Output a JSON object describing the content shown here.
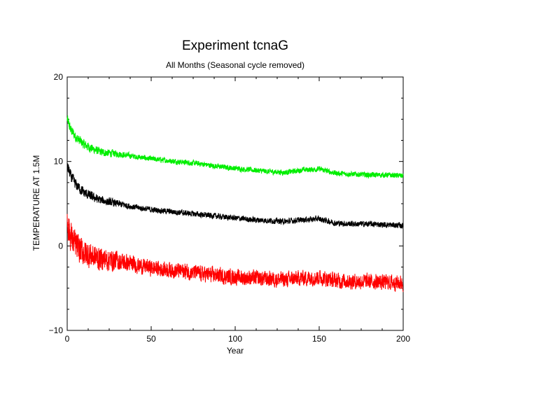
{
  "chart_data": {
    "type": "line",
    "title": "Experiment tcnaG",
    "subtitle": "All Months (Seasonal cycle removed)",
    "xlabel": "Year",
    "ylabel": "TEMPERATURE AT 1.5M",
    "xlim": [
      0,
      200
    ],
    "ylim": [
      -10,
      20
    ],
    "xticks": [
      0,
      50,
      100,
      150,
      200
    ],
    "yticks": [
      -10,
      0,
      10,
      20
    ],
    "grid": false,
    "legend": "none",
    "series": [
      {
        "color": "#00ee00",
        "x": [
          0,
          2,
          5,
          10,
          15,
          20,
          30,
          40,
          50,
          60,
          70,
          80,
          90,
          100,
          110,
          120,
          130,
          140,
          150,
          160,
          170,
          180,
          190,
          200
        ],
        "y": [
          15.0,
          13.8,
          12.9,
          12.0,
          11.5,
          11.1,
          10.9,
          10.6,
          10.3,
          10.1,
          9.9,
          9.7,
          9.4,
          9.2,
          9.0,
          8.8,
          8.7,
          9.0,
          9.1,
          8.6,
          8.5,
          8.4,
          8.4,
          8.3
        ],
        "noise": 0.28
      },
      {
        "color": "#000000",
        "x": [
          0,
          2,
          5,
          10,
          15,
          20,
          30,
          40,
          50,
          60,
          70,
          80,
          90,
          100,
          110,
          120,
          130,
          140,
          150,
          160,
          170,
          180,
          190,
          200
        ],
        "y": [
          9.5,
          8.3,
          7.3,
          6.3,
          5.8,
          5.4,
          5.0,
          4.6,
          4.3,
          4.1,
          3.9,
          3.7,
          3.5,
          3.3,
          3.1,
          3.0,
          2.9,
          3.1,
          3.2,
          2.7,
          2.6,
          2.6,
          2.5,
          2.4
        ],
        "noise": 0.3
      },
      {
        "color": "#ff0000",
        "x": [
          0,
          2,
          5,
          10,
          15,
          20,
          30,
          40,
          50,
          60,
          70,
          80,
          90,
          100,
          110,
          120,
          130,
          140,
          150,
          160,
          170,
          180,
          190,
          200
        ],
        "y": [
          3.0,
          1.2,
          0.0,
          -0.8,
          -1.2,
          -1.5,
          -1.8,
          -2.2,
          -2.6,
          -2.8,
          -3.0,
          -3.3,
          -3.5,
          -3.7,
          -3.8,
          -3.9,
          -4.0,
          -3.8,
          -3.7,
          -4.1,
          -4.2,
          -4.2,
          -4.3,
          -4.4
        ],
        "noise": 0.8
      }
    ]
  }
}
